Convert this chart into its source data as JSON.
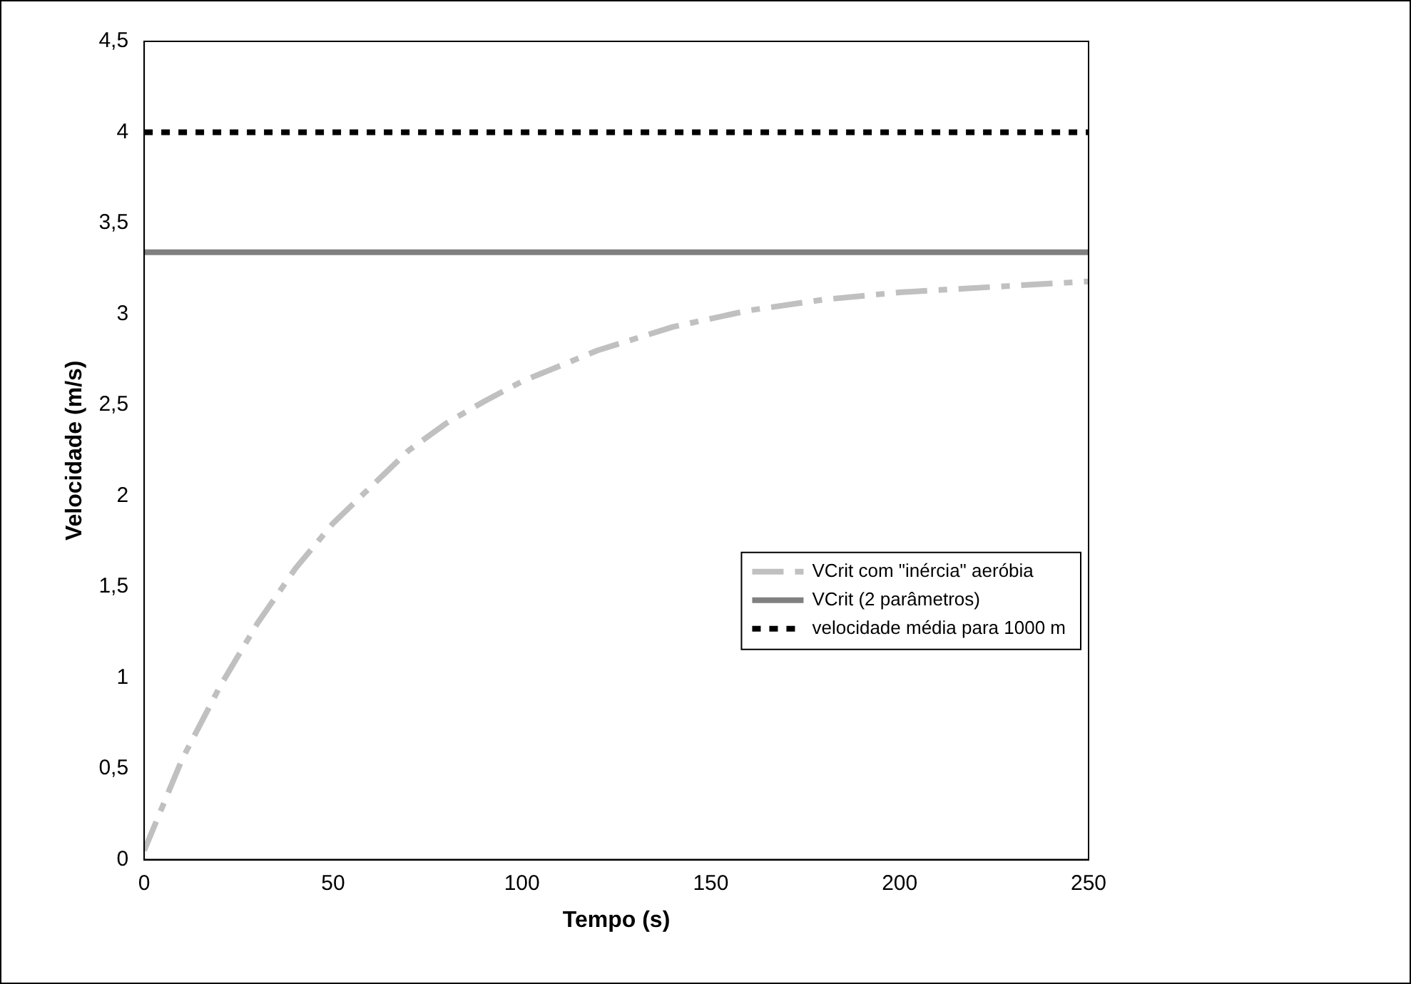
{
  "chart_data": {
    "type": "line",
    "xlabel": "Tempo (s)",
    "ylabel": "Velocidade (m/s)",
    "xlim": [
      0,
      250
    ],
    "xticks": [
      0,
      50,
      100,
      150,
      200,
      250
    ],
    "ylim": [
      0,
      4.5
    ],
    "yticks": [
      0,
      {
        "value": 0.5,
        "label": "0,5"
      },
      1,
      {
        "value": 1.5,
        "label": "1,5"
      },
      2,
      {
        "value": 2.5,
        "label": "2,5"
      },
      3,
      {
        "value": 3.5,
        "label": "3,5"
      },
      4,
      {
        "value": 4.5,
        "label": "4,5"
      }
    ],
    "grid": false,
    "legend": "right",
    "marker": "none",
    "series": [
      {
        "name": "VCrit com \"inércia\" aeróbia",
        "color": "#c0c0c0",
        "line_style": "dashed",
        "x": [
          0,
          10,
          20,
          30,
          40,
          50,
          60,
          70,
          80,
          90,
          100,
          120,
          140,
          160,
          180,
          200,
          225,
          250
        ],
        "values": [
          0.05,
          0.55,
          0.95,
          1.3,
          1.6,
          1.85,
          2.05,
          2.25,
          2.4,
          2.52,
          2.63,
          2.8,
          2.93,
          3.02,
          3.08,
          3.12,
          3.15,
          3.18
        ]
      },
      {
        "name": "VCrit (2 parâmetros)",
        "color": "#808080",
        "line_style": "solid",
        "x": [
          0,
          250
        ],
        "values": [
          3.34,
          3.34
        ]
      },
      {
        "name": "velocidade média para 1000 m",
        "color": "#000000",
        "line_style": "dotted",
        "x": [
          0,
          250
        ],
        "values": [
          4.0,
          4.0
        ]
      }
    ]
  }
}
